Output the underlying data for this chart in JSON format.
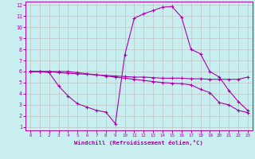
{
  "xlabel": "Windchill (Refroidissement éolien,°C)",
  "xlim": [
    -0.5,
    23.5
  ],
  "ylim": [
    0.7,
    12.3
  ],
  "xticks": [
    0,
    1,
    2,
    3,
    4,
    5,
    6,
    7,
    8,
    9,
    10,
    11,
    12,
    13,
    14,
    15,
    16,
    17,
    18,
    19,
    20,
    21,
    22,
    23
  ],
  "yticks": [
    1,
    2,
    3,
    4,
    5,
    6,
    7,
    8,
    9,
    10,
    11,
    12
  ],
  "bg_color": "#c8eef0",
  "line_color": "#aa00aa",
  "grid_color": "#bbbbbb",
  "line1_x": [
    0,
    1,
    2,
    3,
    4,
    5,
    6,
    7,
    8,
    9,
    10,
    11,
    12,
    13,
    14,
    15,
    16,
    17,
    18,
    19,
    20,
    21,
    22,
    23
  ],
  "line1_y": [
    6.0,
    6.0,
    6.0,
    5.9,
    5.85,
    5.8,
    5.75,
    5.7,
    5.65,
    5.6,
    5.55,
    5.5,
    5.5,
    5.45,
    5.4,
    5.4,
    5.4,
    5.35,
    5.35,
    5.3,
    5.3,
    5.3,
    5.3,
    5.5
  ],
  "line2_x": [
    0,
    1,
    2,
    3,
    4,
    5,
    6,
    7,
    8,
    9,
    10,
    11,
    12,
    13,
    14,
    15,
    16,
    17,
    18,
    19,
    20,
    21,
    22,
    23
  ],
  "line2_y": [
    6.0,
    6.0,
    6.0,
    6.0,
    6.0,
    5.9,
    5.8,
    5.7,
    5.6,
    5.5,
    5.4,
    5.3,
    5.2,
    5.1,
    5.0,
    4.95,
    4.9,
    4.8,
    4.4,
    4.1,
    3.2,
    3.0,
    2.5,
    2.3
  ],
  "line3_x": [
    0,
    1,
    2,
    3,
    4,
    5,
    6,
    7,
    8,
    9,
    10,
    11,
    12,
    13,
    14,
    15,
    16,
    17,
    18,
    19,
    20,
    21,
    22,
    23
  ],
  "line3_y": [
    6.0,
    6.0,
    5.9,
    4.7,
    3.8,
    3.1,
    2.8,
    2.5,
    2.35,
    1.3,
    7.5,
    10.8,
    11.2,
    11.5,
    11.8,
    11.85,
    10.9,
    8.0,
    7.6,
    6.0,
    5.5,
    4.3,
    3.3,
    2.5
  ]
}
